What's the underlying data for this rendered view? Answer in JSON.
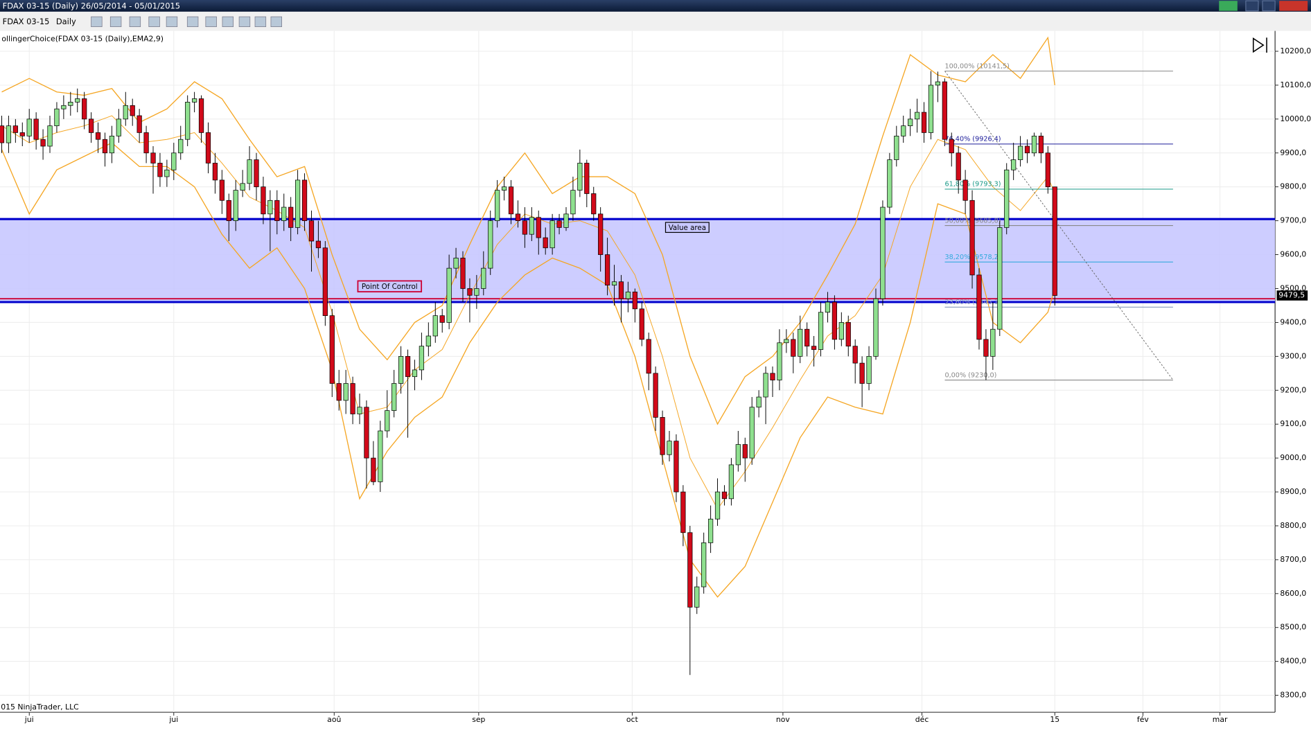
{
  "window": {
    "title": "FDAX 03-15 (Daily)  26/05/2014 - 05/01/2015",
    "instrument": "FDAX 03-15",
    "period": "Daily"
  },
  "chart_data": {
    "type": "candlestick",
    "indicator": "ollingerChoice(FDAX 03-15 (Daily),EMA2,9)",
    "copyright": "015 NinjaTrader, LLC",
    "up_color": "#8fe08f",
    "down_color": "#d10a1a",
    "band_color": "#f5a623",
    "ylim": [
      8250,
      10260
    ],
    "xlim": [
      -0.25,
      185
    ],
    "grid": true,
    "yticks": [
      {
        "value": 8300,
        "label": "8300,0"
      },
      {
        "value": 8400,
        "label": "8400,0"
      },
      {
        "value": 8500,
        "label": "8500,0"
      },
      {
        "value": 8600,
        "label": "8600,0"
      },
      {
        "value": 8700,
        "label": "8700,0"
      },
      {
        "value": 8800,
        "label": "8800,0"
      },
      {
        "value": 8900,
        "label": "8900,0"
      },
      {
        "value": 9000,
        "label": "9000,0"
      },
      {
        "value": 9100,
        "label": "9100,0"
      },
      {
        "value": 9200,
        "label": "9200,0"
      },
      {
        "value": 9300,
        "label": "9300,0"
      },
      {
        "value": 9400,
        "label": "9400,0"
      },
      {
        "value": 9500,
        "label": "9500,0"
      },
      {
        "value": 9600,
        "label": "9600,0"
      },
      {
        "value": 9700,
        "label": "9700,0"
      },
      {
        "value": 9800,
        "label": "9800,0"
      },
      {
        "value": 9900,
        "label": "9900,0"
      },
      {
        "value": 10000,
        "label": "10000,0"
      },
      {
        "value": 10100,
        "label": "10100,0"
      },
      {
        "value": 10200,
        "label": "10200,0"
      }
    ],
    "xticks": [
      {
        "value": 4,
        "label": "jui"
      },
      {
        "value": 25,
        "label": "jui"
      },
      {
        "value": 48.3,
        "label": "aoû"
      },
      {
        "value": 69.3,
        "label": "sep"
      },
      {
        "value": 91.6,
        "label": "oct"
      },
      {
        "value": 113.5,
        "label": "nov"
      },
      {
        "value": 133.7,
        "label": "déc"
      },
      {
        "value": 153,
        "label": "15"
      },
      {
        "value": 165.8,
        "label": "fév"
      },
      {
        "value": 177,
        "label": "mar"
      }
    ],
    "open": [
      9980,
      9930,
      9980,
      9960,
      9950,
      10000,
      9940,
      9920,
      9980,
      10030,
      10040,
      10050,
      10060,
      10000,
      9960,
      9940,
      9900,
      9950,
      10000,
      10040,
      10010,
      9960,
      9900,
      9870,
      9830,
      9850,
      9900,
      9940,
      10050,
      10060,
      9960,
      9870,
      9820,
      9760,
      9700,
      9790,
      9810,
      9880,
      9800,
      9720,
      9760,
      9700,
      9740,
      9680,
      9820,
      9700,
      9640,
      9620,
      9420,
      9220,
      9170,
      9220,
      9130,
      9150,
      9000,
      8930,
      9080,
      9140,
      9220,
      9300,
      9240,
      9260,
      9330,
      9360,
      9420,
      9400,
      9560,
      9590,
      9500,
      9480,
      9500,
      9560,
      9700,
      9790,
      9800,
      9720,
      9700,
      9660,
      9710,
      9650,
      9620,
      9700,
      9680,
      9720,
      9790,
      9870,
      9780,
      9720,
      9600,
      9510,
      9520,
      9470,
      9490,
      9440,
      9350,
      9250,
      9120,
      9010,
      9050,
      8900,
      8780,
      8560,
      8620,
      8750,
      8820,
      8900,
      8880,
      8980,
      9040,
      9000,
      9150,
      9180,
      9250,
      9230,
      9340,
      9350,
      9300,
      9380,
      9330,
      9320,
      9430,
      9460,
      9350,
      9400,
      9330,
      9280,
      9220,
      9300,
      9470,
      9740,
      9880,
      9950,
      9980,
      10000,
      10020,
      9960,
      10100,
      10110,
      9940,
      9900,
      9820,
      9760,
      9540,
      9350,
      9300,
      9380,
      9680,
      9850,
      9880,
      9920,
      9900,
      9950,
      9900,
      9800
    ],
    "high": [
      10010,
      10010,
      10000,
      9990,
      10030,
      10020,
      9970,
      10010,
      10050,
      10070,
      10080,
      10090,
      10080,
      10020,
      9990,
      9960,
      9980,
      10030,
      10080,
      10060,
      10030,
      9980,
      9920,
      9900,
      9880,
      9930,
      9980,
      10070,
      10080,
      10070,
      9990,
      9900,
      9850,
      9780,
      9820,
      9850,
      9920,
      9900,
      9830,
      9790,
      9790,
      9780,
      9770,
      9850,
      9840,
      9730,
      9700,
      9640,
      9440,
      9260,
      9260,
      9240,
      9190,
      9170,
      9050,
      9110,
      9200,
      9260,
      9330,
      9320,
      9290,
      9370,
      9400,
      9460,
      9440,
      9600,
      9620,
      9610,
      9530,
      9540,
      9610,
      9730,
      9820,
      9830,
      9820,
      9760,
      9740,
      9740,
      9730,
      9680,
      9720,
      9720,
      9740,
      9830,
      9910,
      9880,
      9800,
      9740,
      9650,
      9570,
      9540,
      9520,
      9500,
      9460,
      9370,
      9270,
      9140,
      9080,
      9070,
      8920,
      8800,
      8650,
      8780,
      8860,
      8940,
      8920,
      9000,
      9080,
      9060,
      9180,
      9200,
      9270,
      9270,
      9380,
      9380,
      9370,
      9420,
      9400,
      9360,
      9460,
      9490,
      9480,
      9430,
      9420,
      9350,
      9300,
      9330,
      9500,
      9760,
      9900,
      9980,
      10010,
      10030,
      10060,
      10050,
      10141.5,
      10140,
      10120,
      9960,
      9920,
      9850,
      9790,
      9560,
      9380,
      9460,
      9700,
      9870,
      9930,
      9950,
      9940,
      9960,
      9960,
      9920,
      9800
    ],
    "low": [
      9900,
      9900,
      9930,
      9920,
      9930,
      9910,
      9880,
      9900,
      9960,
      10000,
      10010,
      10020,
      9970,
      9930,
      9900,
      9860,
      9870,
      9930,
      9980,
      9980,
      9930,
      9870,
      9780,
      9800,
      9800,
      9820,
      9880,
      9920,
      10020,
      9930,
      9840,
      9780,
      9720,
      9640,
      9670,
      9770,
      9790,
      9760,
      9690,
      9610,
      9660,
      9670,
      9640,
      9660,
      9670,
      9550,
      9590,
      9390,
      9180,
      9140,
      9130,
      9100,
      9100,
      8910,
      8920,
      8900,
      9060,
      9120,
      9190,
      9060,
      9200,
      9230,
      9300,
      9340,
      9370,
      9380,
      9530,
      9460,
      9400,
      9440,
      9480,
      9540,
      9680,
      9760,
      9690,
      9680,
      9620,
      9640,
      9600,
      9600,
      9600,
      9660,
      9670,
      9700,
      9770,
      9740,
      9700,
      9550,
      9480,
      9450,
      9400,
      9430,
      9400,
      9330,
      9200,
      9080,
      8980,
      8990,
      8870,
      8740,
      8360,
      8540,
      8600,
      8720,
      8800,
      8860,
      8860,
      8960,
      8930,
      8980,
      9120,
      9100,
      9180,
      9200,
      9310,
      9250,
      9280,
      9300,
      9270,
      9300,
      9400,
      9320,
      9330,
      9300,
      9220,
      9150,
      9200,
      9290,
      9450,
      9720,
      9860,
      9930,
      9950,
      9960,
      9930,
      9940,
      10050,
      9920,
      9860,
      9780,
      9720,
      9500,
      9320,
      9230,
      9260,
      9360,
      9660,
      9820,
      9860,
      9870,
      9890,
      9870,
      9780,
      9450
    ],
    "close": [
      9930,
      9980,
      9960,
      9950,
      10000,
      9940,
      9920,
      9980,
      10030,
      10040,
      10050,
      10060,
      10000,
      9960,
      9940,
      9900,
      9950,
      10000,
      10040,
      10010,
      9960,
      9900,
      9870,
      9830,
      9850,
      9900,
      9940,
      10050,
      10060,
      9960,
      9870,
      9820,
      9760,
      9700,
      9790,
      9810,
      9880,
      9800,
      9720,
      9760,
      9700,
      9740,
      9680,
      9820,
      9700,
      9640,
      9620,
      9420,
      9220,
      9170,
      9220,
      9130,
      9150,
      9000,
      8930,
      9080,
      9140,
      9220,
      9300,
      9240,
      9260,
      9330,
      9360,
      9420,
      9400,
      9560,
      9590,
      9500,
      9480,
      9500,
      9560,
      9700,
      9790,
      9800,
      9720,
      9700,
      9660,
      9710,
      9650,
      9620,
      9700,
      9680,
      9720,
      9790,
      9870,
      9780,
      9720,
      9600,
      9510,
      9520,
      9470,
      9490,
      9440,
      9350,
      9250,
      9120,
      9010,
      9050,
      8900,
      8780,
      8560,
      8620,
      8750,
      8820,
      8900,
      8880,
      8980,
      9040,
      9000,
      9150,
      9180,
      9250,
      9230,
      9340,
      9350,
      9300,
      9380,
      9330,
      9320,
      9430,
      9460,
      9350,
      9400,
      9330,
      9280,
      9220,
      9300,
      9470,
      9740,
      9880,
      9950,
      9980,
      10000,
      10020,
      9960,
      10100,
      10110,
      9940,
      9900,
      9820,
      9760,
      9540,
      9350,
      9300,
      9380,
      9680,
      9850,
      9880,
      9920,
      9900,
      9950,
      9900,
      9800,
      9479.5
    ],
    "bands": [
      {
        "x": [
          0,
          4,
          8,
          12,
          16,
          20,
          24,
          28,
          32,
          36,
          40,
          44,
          48,
          52,
          56,
          60,
          64,
          68,
          72,
          76,
          80,
          84,
          88,
          92,
          96,
          100,
          104,
          108,
          112,
          116,
          120,
          124,
          128,
          132,
          136,
          140,
          144,
          148,
          152,
          153
        ],
        "values": [
          10080,
          10120,
          10080,
          10070,
          10090,
          9990,
          10030,
          10110,
          10060,
          9940,
          9830,
          9860,
          9600,
          9380,
          9290,
          9400,
          9450,
          9630,
          9800,
          9900,
          9780,
          9830,
          9830,
          9780,
          9600,
          9300,
          9100,
          9240,
          9300,
          9400,
          9540,
          9690,
          9950,
          10190,
          10130,
          10110,
          10190,
          10120,
          10240,
          10100
        ]
      },
      {
        "x": [
          0,
          4,
          8,
          12,
          16,
          20,
          24,
          28,
          32,
          36,
          40,
          44,
          48,
          52,
          56,
          60,
          64,
          68,
          72,
          76,
          80,
          84,
          88,
          92,
          96,
          100,
          104,
          108,
          112,
          116,
          120,
          124,
          128,
          132,
          136,
          140,
          144,
          148,
          152,
          153
        ],
        "values": [
          9980,
          9930,
          9960,
          9980,
          10010,
          9930,
          9940,
          9960,
          9870,
          9770,
          9730,
          9680,
          9430,
          9130,
          9150,
          9260,
          9320,
          9480,
          9630,
          9720,
          9690,
          9700,
          9670,
          9540,
          9300,
          9000,
          8850,
          8960,
          9090,
          9230,
          9360,
          9420,
          9540,
          9800,
          9940,
          9910,
          9800,
          9730,
          9830,
          9780
        ]
      },
      {
        "x": [
          0,
          4,
          8,
          12,
          16,
          20,
          24,
          28,
          32,
          36,
          40,
          44,
          48,
          52,
          56,
          60,
          64,
          68,
          72,
          76,
          80,
          84,
          88,
          92,
          96,
          100,
          104,
          108,
          112,
          116,
          120,
          124,
          128,
          132,
          136,
          140,
          144,
          148,
          152,
          153
        ],
        "values": [
          9910,
          9720,
          9850,
          9890,
          9930,
          9860,
          9860,
          9800,
          9660,
          9560,
          9620,
          9500,
          9260,
          8880,
          9020,
          9120,
          9180,
          9340,
          9460,
          9540,
          9590,
          9560,
          9510,
          9300,
          9000,
          8700,
          8590,
          8680,
          8870,
          9060,
          9180,
          9150,
          9130,
          9400,
          9750,
          9720,
          9400,
          9340,
          9430,
          9500
        ]
      }
    ],
    "value_area": {
      "label": "Value area",
      "high": 9705,
      "low": 9460,
      "color": "#0000cc"
    },
    "poc": {
      "label": "Point Of Control",
      "value": 9470,
      "color": "#cc0033"
    },
    "fib": [
      {
        "value": 10141.5,
        "label": "100,00% (10141,5)",
        "color": "#888888"
      },
      {
        "value": 9926.4,
        "label": "76,40% (9926,4)",
        "color": "#1a1a99"
      },
      {
        "value": 9793.3,
        "label": "61,80% (9793,3)",
        "color": "#1a9988"
      },
      {
        "value": 9685.8,
        "label": "50,00% (9685,8)",
        "color": "#888888"
      },
      {
        "value": 9578.2,
        "label": "38,20% (9578,2)",
        "color": "#33aadd"
      },
      {
        "value": 9445.1,
        "label": "23,60% (9445,1)",
        "color": "#8899bb"
      },
      {
        "value": 9230.0,
        "label": "0,00% (9230,0)",
        "color": "#888888"
      }
    ],
    "last_price": {
      "value": 9479.5,
      "label": "9479,5"
    }
  }
}
